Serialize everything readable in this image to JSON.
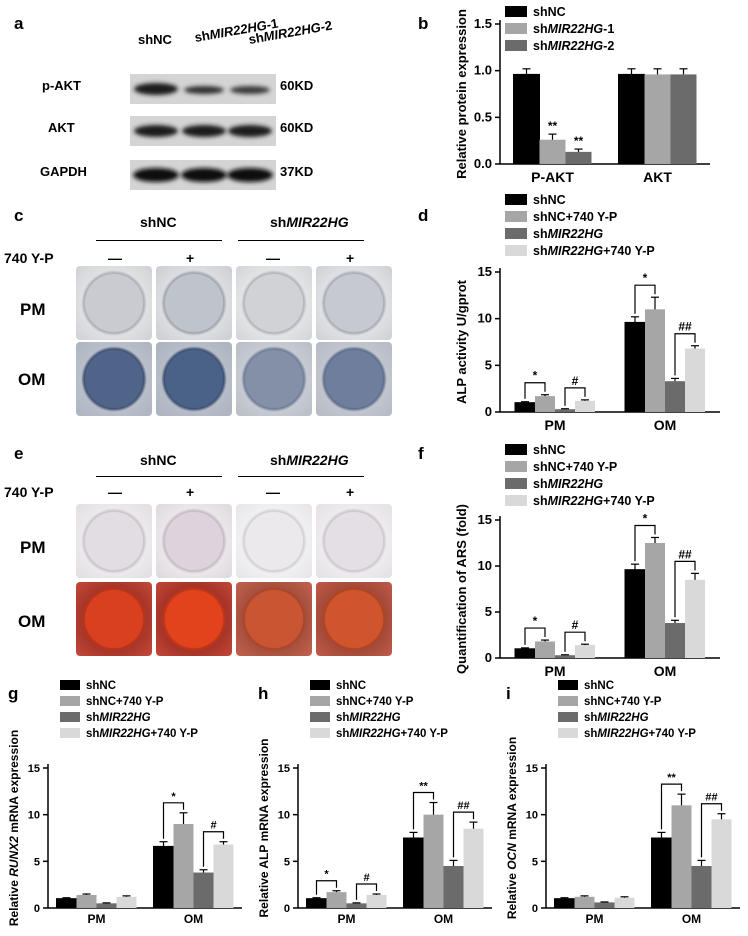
{
  "panels": {
    "a": {
      "letter": "a",
      "lanes": [
        "shNC",
        "shMIR22HG-1",
        "shMIR22HG-2"
      ],
      "rows": [
        {
          "label": "p-AKT",
          "size": "60KD"
        },
        {
          "label": "AKT",
          "size": "60KD"
        },
        {
          "label": "GAPDH",
          "size": "37KD"
        }
      ]
    },
    "c": {
      "letter": "c",
      "groups": [
        "shNC",
        "shMIR22HG"
      ],
      "treatment": "740 Y-P",
      "signs": [
        "—",
        "+",
        "—",
        "+"
      ],
      "rows": [
        "PM",
        "OM"
      ]
    },
    "e": {
      "letter": "e",
      "groups": [
        "shNC",
        "shMIR22HG"
      ],
      "treatment": "740 Y-P",
      "signs": [
        "—",
        "+",
        "—",
        "+"
      ],
      "rows": [
        "PM",
        "OM"
      ]
    }
  },
  "colors": {
    "shNC": "#000000",
    "shNC_740": "#a6a6a6",
    "shMIR": "#6b6b6b",
    "shMIR_740": "#d9d9d9"
  },
  "chart_data": [
    {
      "panel": "b",
      "type": "bar",
      "categories": [
        "P-AKT",
        "AKT"
      ],
      "ylabel": "Relative protein expression",
      "ylim": [
        0,
        1.5
      ],
      "yticks": [
        "0.0",
        "0.5",
        "1.0",
        "1.5"
      ],
      "series": [
        {
          "name": "shNC",
          "values": [
            0.96,
            0.96
          ],
          "errors": [
            0.06,
            0.06
          ]
        },
        {
          "name": "shMIR22HG-1",
          "values": [
            0.26,
            0.96
          ],
          "errors": [
            0.06,
            0.06
          ]
        },
        {
          "name": "shMIR22HG-2",
          "values": [
            0.13,
            0.96
          ],
          "errors": [
            0.03,
            0.06
          ]
        }
      ],
      "annotations": [
        "**",
        "**"
      ]
    },
    {
      "panel": "d",
      "type": "bar",
      "categories": [
        "PM",
        "OM"
      ],
      "ylabel": "ALP activity U/gprot",
      "ylim": [
        0,
        15
      ],
      "yticks": [
        "0",
        "5",
        "10",
        "15"
      ],
      "series": [
        {
          "name": "shNC",
          "values": [
            1.0,
            9.6
          ],
          "errors": [
            0.1,
            0.6
          ]
        },
        {
          "name": "shNC+740 Y-P",
          "values": [
            1.7,
            11.0
          ],
          "errors": [
            0.15,
            1.3
          ]
        },
        {
          "name": "shMIR22HG",
          "values": [
            0.3,
            3.3
          ],
          "errors": [
            0.05,
            0.3
          ]
        },
        {
          "name": "shMIR22HG+740 Y-P",
          "values": [
            1.2,
            6.8
          ],
          "errors": [
            0.1,
            0.3
          ]
        }
      ],
      "annotations": [
        "*",
        "#",
        "*",
        "##"
      ]
    },
    {
      "panel": "f",
      "type": "bar",
      "categories": [
        "PM",
        "OM"
      ],
      "ylabel": "Quantification of ARS (fold)",
      "ylim": [
        0,
        15
      ],
      "yticks": [
        "0",
        "5",
        "10",
        "15"
      ],
      "series": [
        {
          "name": "shNC",
          "values": [
            1.0,
            9.6
          ],
          "errors": [
            0.1,
            0.6
          ]
        },
        {
          "name": "shNC+740 Y-P",
          "values": [
            1.8,
            12.5
          ],
          "errors": [
            0.15,
            0.6
          ]
        },
        {
          "name": "shMIR22HG",
          "values": [
            0.3,
            3.8
          ],
          "errors": [
            0.05,
            0.3
          ]
        },
        {
          "name": "shMIR22HG+740 Y-P",
          "values": [
            1.4,
            8.5
          ],
          "errors": [
            0.1,
            0.7
          ]
        }
      ],
      "annotations": [
        "*",
        "#",
        "*",
        "##"
      ]
    },
    {
      "panel": "g",
      "type": "bar",
      "categories": [
        "PM",
        "OM"
      ],
      "ylabel": "Relative RUNX2 mRNA expression",
      "ylim": [
        0,
        15
      ],
      "yticks": [
        "0",
        "5",
        "10",
        "15"
      ],
      "series": [
        {
          "name": "shNC",
          "values": [
            1.0,
            6.6
          ],
          "errors": [
            0.1,
            0.5
          ]
        },
        {
          "name": "shNC+740 Y-P",
          "values": [
            1.4,
            9.0
          ],
          "errors": [
            0.1,
            1.2
          ]
        },
        {
          "name": "shMIR22HG",
          "values": [
            0.5,
            3.8
          ],
          "errors": [
            0.05,
            0.3
          ]
        },
        {
          "name": "shMIR22HG+740 Y-P",
          "values": [
            1.2,
            6.8
          ],
          "errors": [
            0.1,
            0.3
          ]
        }
      ],
      "annotations": [
        "*",
        "#"
      ]
    },
    {
      "panel": "h",
      "type": "bar",
      "categories": [
        "PM",
        "OM"
      ],
      "ylabel": "Relative ALP mRNA expression",
      "ylim": [
        0,
        15
      ],
      "yticks": [
        "0",
        "5",
        "10",
        "15"
      ],
      "series": [
        {
          "name": "shNC",
          "values": [
            1.0,
            7.5
          ],
          "errors": [
            0.1,
            0.6
          ]
        },
        {
          "name": "shNC+740 Y-P",
          "values": [
            1.7,
            10.0
          ],
          "errors": [
            0.15,
            1.3
          ]
        },
        {
          "name": "shMIR22HG",
          "values": [
            0.5,
            4.5
          ],
          "errors": [
            0.05,
            0.6
          ]
        },
        {
          "name": "shMIR22HG+740 Y-P",
          "values": [
            1.4,
            8.5
          ],
          "errors": [
            0.1,
            0.7
          ]
        }
      ],
      "annotations": [
        "*",
        "#",
        "**",
        "##"
      ]
    },
    {
      "panel": "i",
      "type": "bar",
      "categories": [
        "PM",
        "OM"
      ],
      "ylabel": "Relative OCN mRNA expression",
      "ylim": [
        0,
        15
      ],
      "yticks": [
        "0",
        "5",
        "10",
        "15"
      ],
      "series": [
        {
          "name": "shNC",
          "values": [
            1.0,
            7.5
          ],
          "errors": [
            0.1,
            0.6
          ]
        },
        {
          "name": "shNC+740 Y-P",
          "values": [
            1.2,
            11.0
          ],
          "errors": [
            0.1,
            1.2
          ]
        },
        {
          "name": "shMIR22HG",
          "values": [
            0.6,
            4.5
          ],
          "errors": [
            0.05,
            0.6
          ]
        },
        {
          "name": "shMIR22HG+740 Y-P",
          "values": [
            1.1,
            9.5
          ],
          "errors": [
            0.1,
            0.6
          ]
        }
      ],
      "annotations": [
        "**",
        "##"
      ]
    }
  ]
}
